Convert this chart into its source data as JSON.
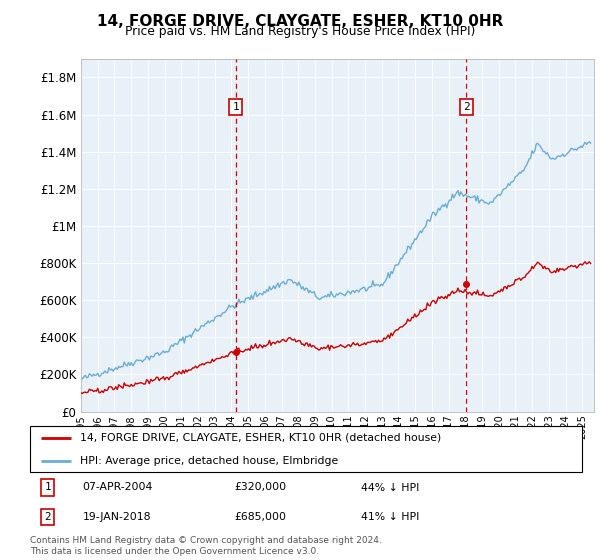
{
  "title": "14, FORGE DRIVE, CLAYGATE, ESHER, KT10 0HR",
  "subtitle": "Price paid vs. HM Land Registry's House Price Index (HPI)",
  "legend_line1": "14, FORGE DRIVE, CLAYGATE, ESHER, KT10 0HR (detached house)",
  "legend_line2": "HPI: Average price, detached house, Elmbridge",
  "sale1_date": "07-APR-2004",
  "sale1_price": 320000,
  "sale1_label": "1",
  "sale1_note": "44% ↓ HPI",
  "sale1_x": 2004.27,
  "sale2_date": "19-JAN-2018",
  "sale2_price": 685000,
  "sale2_label": "2",
  "sale2_note": "41% ↓ HPI",
  "sale2_x": 2018.05,
  "footnote": "Contains HM Land Registry data © Crown copyright and database right 2024.\nThis data is licensed under the Open Government Licence v3.0.",
  "hpi_color": "#6aaed6",
  "price_color": "#cc0000",
  "vline_color": "#cc0000",
  "ylim": [
    0,
    1900000
  ],
  "yticks": [
    0,
    200000,
    400000,
    600000,
    800000,
    1000000,
    1200000,
    1400000,
    1600000,
    1800000
  ],
  "ylabel_map": {
    "0": "£0",
    "200000": "£200K",
    "400000": "£400K",
    "600000": "£600K",
    "800000": "£800K",
    "1000000": "£1M",
    "1200000": "£1.2M",
    "1400000": "£1.4M",
    "1600000": "£1.6M",
    "1800000": "£1.8M"
  },
  "background_color": "#e8f0f8",
  "grid_color": "#ffffff"
}
